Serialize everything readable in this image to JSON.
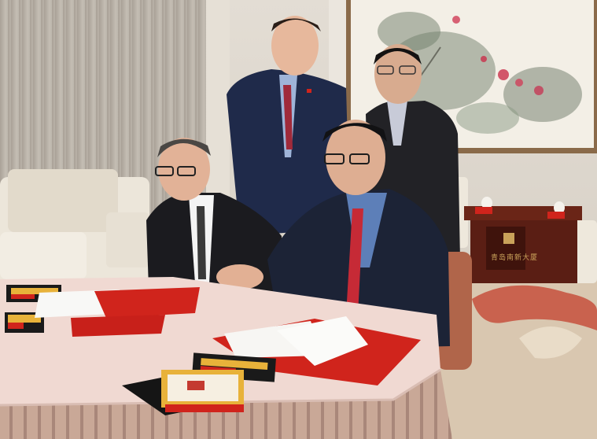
{
  "photo": {
    "caption": "",
    "plaque_text": "青岛南新大厦"
  },
  "colors": {
    "wall": "#d8d2c8",
    "curtain": "#b9b2a8",
    "carpet": "#d9c7b0",
    "table_cloth": "#f0d9d2",
    "folder_red": "#d0241c",
    "suit_navy": "#1f2a4a",
    "suit_black": "#1b1b1f",
    "cabinet_wood": "#5a1e14"
  }
}
